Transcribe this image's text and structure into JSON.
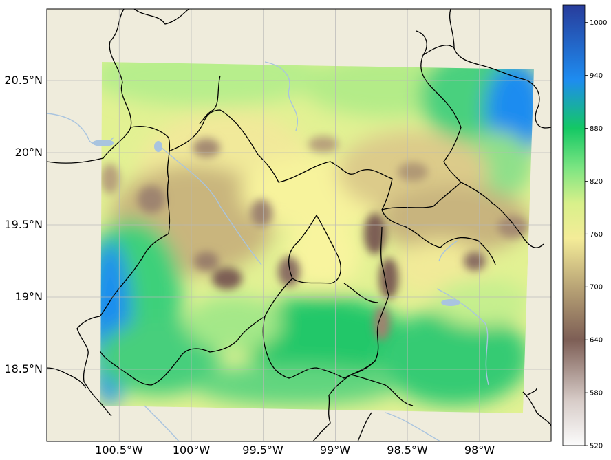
{
  "map": {
    "projection": "lat-lon",
    "extent": {
      "lon_min": -101.0,
      "lon_max": -97.5,
      "lat_min": 18.0,
      "lat_max": 21.0
    },
    "background_color": "#efecdc",
    "lat_ticks": [
      {
        "value": 20.5,
        "label": "20.5°N"
      },
      {
        "value": 20.0,
        "label": "20°N"
      },
      {
        "value": 19.5,
        "label": "19.5°N"
      },
      {
        "value": 19.0,
        "label": "19°N"
      },
      {
        "value": 18.5,
        "label": "18.5°N"
      }
    ],
    "lon_ticks": [
      {
        "value": -100.5,
        "label": "100.5°W"
      },
      {
        "value": -100.0,
        "label": "100°W"
      },
      {
        "value": -99.5,
        "label": "99.5°W"
      },
      {
        "value": -99.0,
        "label": "99°W"
      },
      {
        "value": -98.5,
        "label": "98.5°W"
      },
      {
        "value": -98.0,
        "label": "98°W"
      }
    ],
    "gridlines": true,
    "field_domain": "quadrilateral covering approx. 100.6°W–97.6°W, 18.2°N–20.6°N"
  },
  "colorbar": {
    "position": "right",
    "colormap": "terrain-like (white → brown → yellow → green → blue)",
    "min": 520,
    "max": 1020,
    "tick_labels": [
      "520",
      "580",
      "640",
      "700",
      "760",
      "820",
      "880",
      "940",
      "1000"
    ],
    "colors": {
      "low": "#fbfbfb",
      "brown": "#7d5e55",
      "yellow": "#fafa96",
      "green": "#14c864",
      "blue": "#1e8cf0",
      "top": "#283c9b"
    }
  }
}
